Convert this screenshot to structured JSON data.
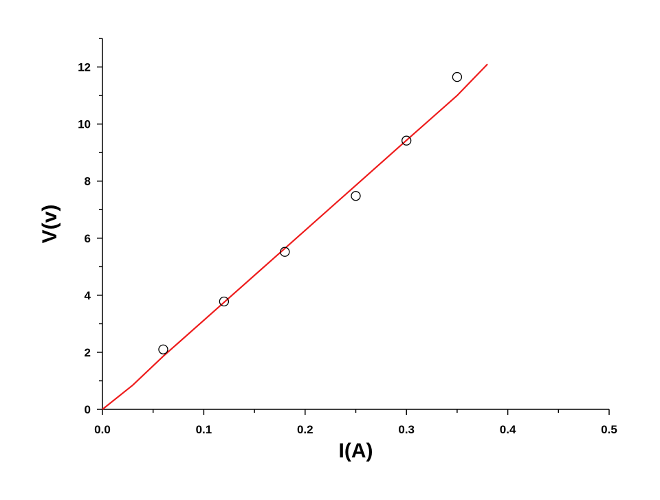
{
  "chart_data": {
    "type": "scatter",
    "xlabel": "I(A)",
    "ylabel": "V(v)",
    "xlim": [
      0.0,
      0.5
    ],
    "ylim": [
      0,
      13
    ],
    "x_ticks": [
      0.0,
      0.1,
      0.2,
      0.3,
      0.4,
      0.5
    ],
    "x_tick_labels": [
      "0.0",
      "0.1",
      "0.2",
      "0.3",
      "0.4",
      "0.5"
    ],
    "y_ticks": [
      0,
      2,
      4,
      6,
      8,
      10,
      12
    ],
    "y_tick_labels": [
      "0",
      "2",
      "4",
      "6",
      "8",
      "10",
      "12"
    ],
    "grid": false,
    "series": [
      {
        "kind": "scatter",
        "marker": "open-circle",
        "color": "#000000",
        "x": [
          0.06,
          0.12,
          0.18,
          0.25,
          0.3,
          0.35
        ],
        "y": [
          2.1,
          3.78,
          5.52,
          7.48,
          9.42,
          11.65
        ]
      },
      {
        "kind": "line",
        "color": "#ee1c1c",
        "x": [
          0.0,
          0.03,
          0.06,
          0.12,
          0.18,
          0.25,
          0.3,
          0.35,
          0.38
        ],
        "y": [
          0.0,
          0.85,
          1.86,
          3.75,
          5.64,
          7.85,
          9.43,
          11.0,
          12.1
        ]
      }
    ]
  }
}
